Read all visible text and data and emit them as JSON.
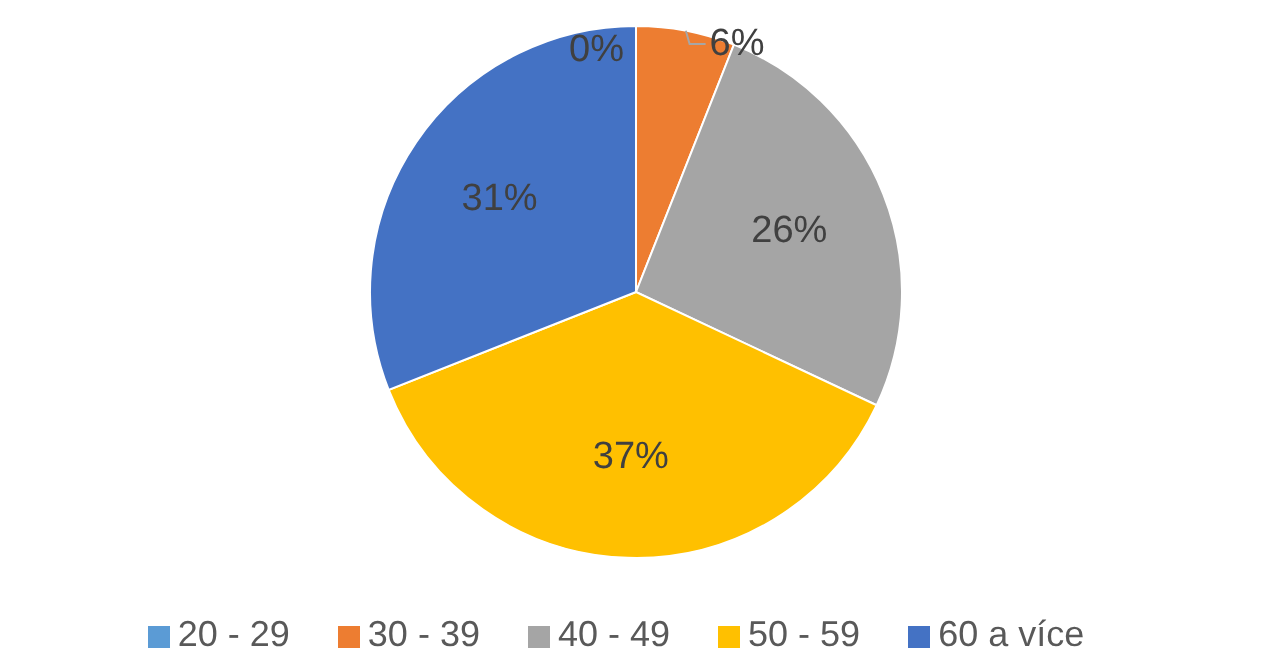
{
  "chart_data": {
    "type": "pie",
    "categories": [
      "20 - 29",
      "30 - 39",
      "40 - 49",
      "50 - 59",
      "60 a více"
    ],
    "values": [
      0,
      6,
      26,
      37,
      31
    ],
    "value_labels": [
      "0%",
      "6%",
      "26%",
      "37%",
      "31%"
    ],
    "colors": [
      "#5b9bd5",
      "#ed7d31",
      "#a5a5a5",
      "#ffc000",
      "#4472c4"
    ],
    "legend": "bottom"
  }
}
